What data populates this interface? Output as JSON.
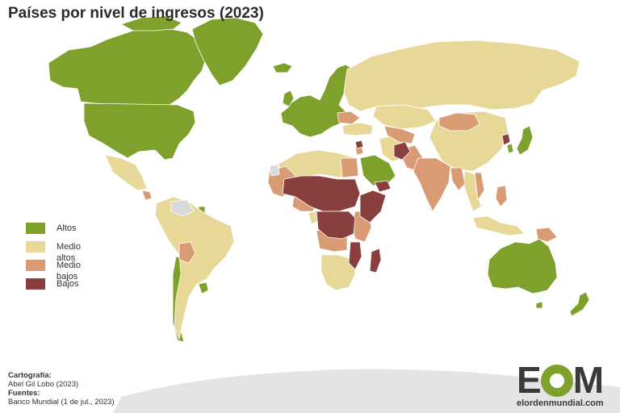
{
  "title": "Países por nivel de ingresos (2023)",
  "legend": [
    {
      "label": "Altos",
      "color": "#7da12b"
    },
    {
      "label": "Medio altos",
      "color": "#e8d898"
    },
    {
      "label": "Medio bajos",
      "color": "#d99b73"
    },
    {
      "label": "Bajos",
      "color": "#8a3f3f"
    }
  ],
  "colors": {
    "no_data": "#d9d9d9",
    "ocean": "#ffffff",
    "antarctica": "#e4e4e4",
    "border": "#ffffff"
  },
  "credits": {
    "cartography_heading": "Cartografía:",
    "cartography_author": "Abel Gil Lobo (2023)",
    "sources_heading": "Fuentes:",
    "sources_text": "Banco Mundial (1 de jul., 2023)"
  },
  "logo": {
    "letter_e": "E",
    "letter_m": "M",
    "url": "elordenmundial.com"
  }
}
